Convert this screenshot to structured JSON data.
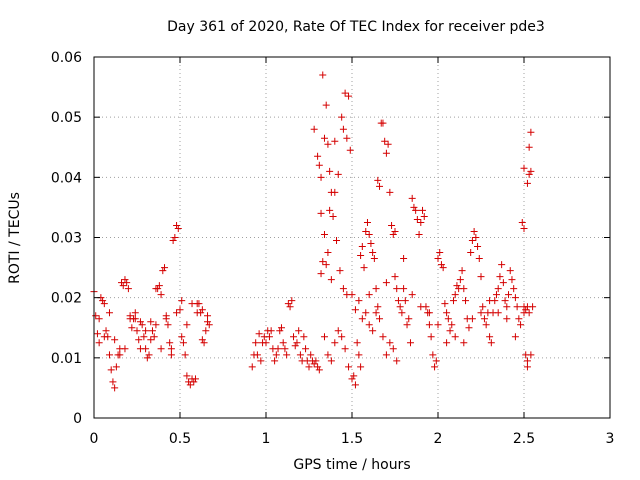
{
  "chart_data": {
    "type": "scatter",
    "title": "Day 361 of 2020, Rate Of TEC Index for receiver pde3",
    "xlabel": "GPS time / hours",
    "ylabel": "ROTI / TECUs",
    "xlim": [
      0,
      3
    ],
    "ylim": [
      0,
      0.06
    ],
    "x_ticks": [
      0,
      0.5,
      1,
      1.5,
      2,
      2.5,
      3
    ],
    "y_ticks": [
      0,
      0.01,
      0.02,
      0.03,
      0.04,
      0.05,
      0.06
    ],
    "x_tick_labels": [
      "0",
      "0.5",
      "1",
      "1.5",
      "2",
      "2.5",
      "3"
    ],
    "y_tick_labels": [
      "0",
      "0.01",
      "0.02",
      "0.03",
      "0.04",
      "0.05",
      "0.06"
    ],
    "grid": true,
    "marker": "plus",
    "marker_color": "#d40000",
    "points": [
      [
        0.0,
        0.021
      ],
      [
        0.01,
        0.017
      ],
      [
        0.02,
        0.014
      ],
      [
        0.03,
        0.0125
      ],
      [
        0.04,
        0.02
      ],
      [
        0.05,
        0.0195
      ],
      [
        0.06,
        0.019
      ],
      [
        0.07,
        0.0145
      ],
      [
        0.08,
        0.0135
      ],
      [
        0.09,
        0.0105
      ],
      [
        0.1,
        0.008
      ],
      [
        0.11,
        0.006
      ],
      [
        0.12,
        0.005
      ],
      [
        0.13,
        0.0085
      ],
      [
        0.14,
        0.0105
      ],
      [
        0.15,
        0.0115
      ],
      [
        0.16,
        0.0225
      ],
      [
        0.17,
        0.022
      ],
      [
        0.18,
        0.023
      ],
      [
        0.19,
        0.0225
      ],
      [
        0.2,
        0.0215
      ],
      [
        0.21,
        0.017
      ],
      [
        0.22,
        0.015
      ],
      [
        0.23,
        0.0165
      ],
      [
        0.24,
        0.0165
      ],
      [
        0.25,
        0.0145
      ],
      [
        0.26,
        0.013
      ],
      [
        0.27,
        0.0115
      ],
      [
        0.28,
        0.0155
      ],
      [
        0.29,
        0.0135
      ],
      [
        0.3,
        0.0115
      ],
      [
        0.31,
        0.01
      ],
      [
        0.32,
        0.0105
      ],
      [
        0.33,
        0.013
      ],
      [
        0.34,
        0.0145
      ],
      [
        0.35,
        0.0135
      ],
      [
        0.36,
        0.0155
      ],
      [
        0.37,
        0.0215
      ],
      [
        0.38,
        0.022
      ],
      [
        0.39,
        0.0205
      ],
      [
        0.4,
        0.0245
      ],
      [
        0.41,
        0.025
      ],
      [
        0.42,
        0.017
      ],
      [
        0.43,
        0.0155
      ],
      [
        0.44,
        0.0125
      ],
      [
        0.45,
        0.0105
      ],
      [
        0.46,
        0.0295
      ],
      [
        0.47,
        0.03
      ],
      [
        0.48,
        0.032
      ],
      [
        0.49,
        0.0315
      ],
      [
        0.5,
        0.018
      ],
      [
        0.51,
        0.0135
      ],
      [
        0.52,
        0.0125
      ],
      [
        0.53,
        0.0105
      ],
      [
        0.54,
        0.007
      ],
      [
        0.55,
        0.006
      ],
      [
        0.56,
        0.0055
      ],
      [
        0.57,
        0.0065
      ],
      [
        0.58,
        0.006
      ],
      [
        0.59,
        0.0065
      ],
      [
        0.6,
        0.019
      ],
      [
        0.61,
        0.019
      ],
      [
        0.62,
        0.0175
      ],
      [
        0.63,
        0.013
      ],
      [
        0.64,
        0.0125
      ],
      [
        0.65,
        0.0145
      ],
      [
        0.66,
        0.016
      ],
      [
        0.67,
        0.0155
      ],
      [
        0.03,
        0.0165
      ],
      [
        0.06,
        0.0135
      ],
      [
        0.09,
        0.0175
      ],
      [
        0.12,
        0.013
      ],
      [
        0.15,
        0.0105
      ],
      [
        0.18,
        0.0115
      ],
      [
        0.21,
        0.0165
      ],
      [
        0.24,
        0.0175
      ],
      [
        0.27,
        0.016
      ],
      [
        0.3,
        0.0145
      ],
      [
        0.33,
        0.016
      ],
      [
        0.36,
        0.0215
      ],
      [
        0.39,
        0.0115
      ],
      [
        0.42,
        0.0165
      ],
      [
        0.45,
        0.0115
      ],
      [
        0.48,
        0.0175
      ],
      [
        0.51,
        0.0195
      ],
      [
        0.54,
        0.0155
      ],
      [
        0.57,
        0.019
      ],
      [
        0.6,
        0.0175
      ],
      [
        0.63,
        0.018
      ],
      [
        0.66,
        0.017
      ],
      [
        0.92,
        0.0085
      ],
      [
        0.93,
        0.0105
      ],
      [
        0.94,
        0.0125
      ],
      [
        0.95,
        0.0105
      ],
      [
        0.96,
        0.014
      ],
      [
        0.97,
        0.0095
      ],
      [
        0.98,
        0.0125
      ],
      [
        0.99,
        0.0135
      ],
      [
        1.0,
        0.0125
      ],
      [
        1.01,
        0.0145
      ],
      [
        1.02,
        0.0135
      ],
      [
        1.03,
        0.0145
      ],
      [
        1.04,
        0.0115
      ],
      [
        1.05,
        0.0095
      ],
      [
        1.06,
        0.0105
      ],
      [
        1.07,
        0.0115
      ],
      [
        1.08,
        0.0145
      ],
      [
        1.09,
        0.015
      ],
      [
        1.1,
        0.0125
      ],
      [
        1.11,
        0.0115
      ],
      [
        1.12,
        0.0105
      ],
      [
        1.13,
        0.019
      ],
      [
        1.14,
        0.0185
      ],
      [
        1.15,
        0.0195
      ],
      [
        1.16,
        0.0135
      ],
      [
        1.17,
        0.012
      ],
      [
        1.18,
        0.0125
      ],
      [
        1.19,
        0.0145
      ],
      [
        1.2,
        0.0105
      ],
      [
        1.21,
        0.0095
      ],
      [
        1.22,
        0.0135
      ],
      [
        1.23,
        0.0115
      ],
      [
        1.24,
        0.0095
      ],
      [
        1.25,
        0.0085
      ],
      [
        1.26,
        0.0105
      ],
      [
        1.27,
        0.0095
      ],
      [
        1.28,
        0.009
      ],
      [
        1.29,
        0.0095
      ],
      [
        1.3,
        0.0085
      ],
      [
        1.31,
        0.008
      ],
      [
        1.28,
        0.048
      ],
      [
        1.3,
        0.0435
      ],
      [
        1.31,
        0.042
      ],
      [
        1.32,
        0.04
      ],
      [
        1.33,
        0.057
      ],
      [
        1.34,
        0.0465
      ],
      [
        1.35,
        0.052
      ],
      [
        1.36,
        0.0455
      ],
      [
        1.37,
        0.041
      ],
      [
        1.38,
        0.0375
      ],
      [
        1.4,
        0.046
      ],
      [
        1.42,
        0.0405
      ],
      [
        1.44,
        0.05
      ],
      [
        1.45,
        0.048
      ],
      [
        1.46,
        0.054
      ],
      [
        1.47,
        0.0465
      ],
      [
        1.48,
        0.0535
      ],
      [
        1.49,
        0.0445
      ],
      [
        1.32,
        0.034
      ],
      [
        1.34,
        0.0305
      ],
      [
        1.36,
        0.0275
      ],
      [
        1.38,
        0.023
      ],
      [
        1.39,
        0.0335
      ],
      [
        1.41,
        0.0295
      ],
      [
        1.43,
        0.0245
      ],
      [
        1.45,
        0.0215
      ],
      [
        1.47,
        0.0205
      ],
      [
        1.33,
        0.026
      ],
      [
        1.35,
        0.0255
      ],
      [
        1.37,
        0.0345
      ],
      [
        1.4,
        0.0375
      ],
      [
        1.32,
        0.024
      ],
      [
        1.34,
        0.0135
      ],
      [
        1.36,
        0.0105
      ],
      [
        1.38,
        0.0095
      ],
      [
        1.4,
        0.0125
      ],
      [
        1.42,
        0.0145
      ],
      [
        1.44,
        0.0135
      ],
      [
        1.46,
        0.0115
      ],
      [
        1.48,
        0.0085
      ],
      [
        1.5,
        0.0065
      ],
      [
        1.51,
        0.007
      ],
      [
        1.52,
        0.0055
      ],
      [
        1.53,
        0.0125
      ],
      [
        1.54,
        0.0105
      ],
      [
        1.55,
        0.0085
      ],
      [
        1.5,
        0.0205
      ],
      [
        1.52,
        0.018
      ],
      [
        1.54,
        0.0195
      ],
      [
        1.56,
        0.0165
      ],
      [
        1.58,
        0.0175
      ],
      [
        1.6,
        0.0155
      ],
      [
        1.62,
        0.0145
      ],
      [
        1.64,
        0.0175
      ],
      [
        1.66,
        0.0165
      ],
      [
        1.68,
        0.0135
      ],
      [
        1.7,
        0.0105
      ],
      [
        1.72,
        0.0125
      ],
      [
        1.74,
        0.0115
      ],
      [
        1.76,
        0.0095
      ],
      [
        1.55,
        0.027
      ],
      [
        1.56,
        0.0285
      ],
      [
        1.57,
        0.025
      ],
      [
        1.58,
        0.031
      ],
      [
        1.59,
        0.0325
      ],
      [
        1.6,
        0.0305
      ],
      [
        1.61,
        0.029
      ],
      [
        1.62,
        0.0275
      ],
      [
        1.63,
        0.0265
      ],
      [
        1.64,
        0.0215
      ],
      [
        1.65,
        0.0395
      ],
      [
        1.66,
        0.0385
      ],
      [
        1.67,
        0.049
      ],
      [
        1.68,
        0.049
      ],
      [
        1.69,
        0.046
      ],
      [
        1.7,
        0.044
      ],
      [
        1.71,
        0.0455
      ],
      [
        1.72,
        0.0375
      ],
      [
        1.73,
        0.032
      ],
      [
        1.74,
        0.0305
      ],
      [
        1.75,
        0.031
      ],
      [
        1.76,
        0.0215
      ],
      [
        1.77,
        0.0195
      ],
      [
        1.78,
        0.0185
      ],
      [
        1.79,
        0.0175
      ],
      [
        1.8,
        0.0215
      ],
      [
        1.81,
        0.0195
      ],
      [
        1.82,
        0.0155
      ],
      [
        1.83,
        0.0165
      ],
      [
        1.84,
        0.0125
      ],
      [
        1.85,
        0.0365
      ],
      [
        1.86,
        0.035
      ],
      [
        1.87,
        0.0345
      ],
      [
        1.88,
        0.033
      ],
      [
        1.89,
        0.0305
      ],
      [
        1.9,
        0.0325
      ],
      [
        1.91,
        0.0345
      ],
      [
        1.92,
        0.0335
      ],
      [
        1.93,
        0.0185
      ],
      [
        1.94,
        0.0175
      ],
      [
        1.95,
        0.0155
      ],
      [
        1.96,
        0.0135
      ],
      [
        1.97,
        0.0105
      ],
      [
        1.98,
        0.0085
      ],
      [
        1.99,
        0.0095
      ],
      [
        2.0,
        0.0265
      ],
      [
        2.01,
        0.0275
      ],
      [
        2.02,
        0.0255
      ],
      [
        2.03,
        0.025
      ],
      [
        2.04,
        0.019
      ],
      [
        2.05,
        0.0175
      ],
      [
        2.06,
        0.0165
      ],
      [
        2.07,
        0.0145
      ],
      [
        2.08,
        0.0155
      ],
      [
        2.09,
        0.0195
      ],
      [
        2.1,
        0.0205
      ],
      [
        2.11,
        0.022
      ],
      [
        2.12,
        0.0215
      ],
      [
        2.13,
        0.023
      ],
      [
        2.14,
        0.0245
      ],
      [
        2.15,
        0.0215
      ],
      [
        2.16,
        0.0195
      ],
      [
        2.17,
        0.0165
      ],
      [
        2.18,
        0.015
      ],
      [
        2.19,
        0.0275
      ],
      [
        2.2,
        0.0295
      ],
      [
        2.21,
        0.031
      ],
      [
        2.22,
        0.03
      ],
      [
        2.23,
        0.0285
      ],
      [
        2.24,
        0.0265
      ],
      [
        2.25,
        0.0235
      ],
      [
        2.26,
        0.0185
      ],
      [
        2.27,
        0.0165
      ],
      [
        2.28,
        0.0155
      ],
      [
        2.29,
        0.0175
      ],
      [
        2.3,
        0.0135
      ],
      [
        2.31,
        0.0125
      ],
      [
        2.32,
        0.0175
      ],
      [
        2.33,
        0.0195
      ],
      [
        2.34,
        0.0205
      ],
      [
        2.35,
        0.0215
      ],
      [
        2.36,
        0.0235
      ],
      [
        2.37,
        0.0255
      ],
      [
        2.38,
        0.0225
      ],
      [
        2.39,
        0.0195
      ],
      [
        2.4,
        0.0185
      ],
      [
        2.41,
        0.0205
      ],
      [
        2.42,
        0.0245
      ],
      [
        2.43,
        0.023
      ],
      [
        2.44,
        0.0215
      ],
      [
        2.45,
        0.02
      ],
      [
        2.46,
        0.0185
      ],
      [
        2.47,
        0.0165
      ],
      [
        2.48,
        0.0155
      ],
      [
        2.49,
        0.0325
      ],
      [
        2.5,
        0.0315
      ],
      [
        2.51,
        0.0105
      ],
      [
        2.52,
        0.0095
      ],
      [
        2.53,
        0.0405
      ],
      [
        2.54,
        0.041
      ],
      [
        2.5,
        0.0415
      ],
      [
        2.52,
        0.039
      ],
      [
        2.53,
        0.045
      ],
      [
        2.54,
        0.0475
      ],
      [
        2.5,
        0.0175
      ],
      [
        2.51,
        0.018
      ],
      [
        2.52,
        0.0185
      ],
      [
        2.53,
        0.0175
      ],
      [
        2.54,
        0.0105
      ],
      [
        2.52,
        0.0085
      ],
      [
        1.6,
        0.0205
      ],
      [
        1.65,
        0.0185
      ],
      [
        1.7,
        0.0225
      ],
      [
        1.75,
        0.0235
      ],
      [
        1.8,
        0.0265
      ],
      [
        1.85,
        0.0205
      ],
      [
        1.9,
        0.0185
      ],
      [
        1.95,
        0.0175
      ],
      [
        2.0,
        0.0155
      ],
      [
        2.05,
        0.0125
      ],
      [
        2.1,
        0.0135
      ],
      [
        2.15,
        0.0125
      ],
      [
        2.2,
        0.0165
      ],
      [
        2.25,
        0.0175
      ],
      [
        2.3,
        0.0195
      ],
      [
        2.35,
        0.0175
      ],
      [
        2.4,
        0.0165
      ],
      [
        2.45,
        0.0135
      ],
      [
        2.5,
        0.0185
      ],
      [
        2.55,
        0.0185
      ]
    ]
  }
}
